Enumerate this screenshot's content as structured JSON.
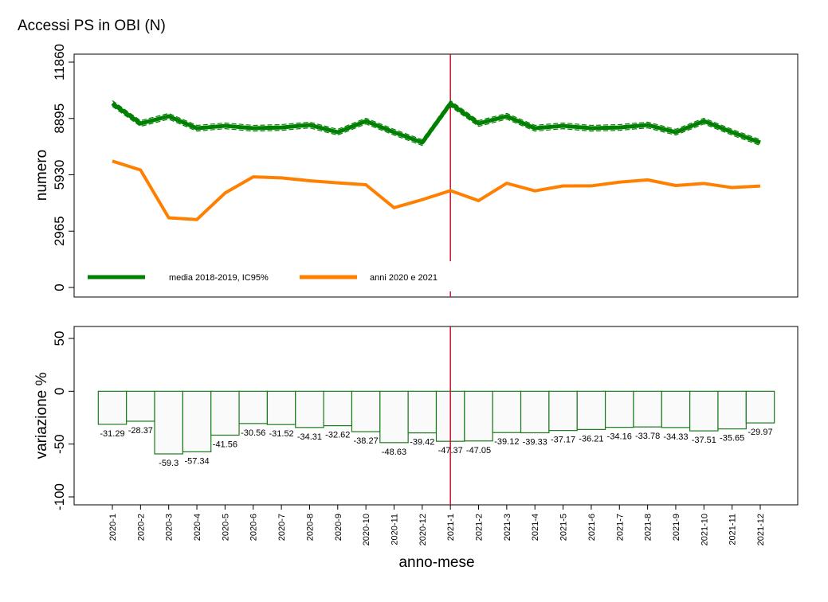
{
  "chart_data": [
    {
      "type": "line",
      "title": "Accessi PS in OBI (N)",
      "ylabel": "numero",
      "ylim": [
        0,
        11860
      ],
      "yticks": [
        "0",
        "2965",
        "5930",
        "8895",
        "11860"
      ],
      "x": [
        "2020-1",
        "2020-2",
        "2020-3",
        "2020-4",
        "2020-5",
        "2020-6",
        "2020-7",
        "2020-8",
        "2020-9",
        "2020-10",
        "2020-11",
        "2020-12",
        "2021-1",
        "2021-2",
        "2021-3",
        "2021-4",
        "2021-5",
        "2021-6",
        "2021-7",
        "2021-8",
        "2021-9",
        "2021-10",
        "2021-11",
        "2021-12"
      ],
      "series": [
        {
          "name": "media 2018-2019, IC95%",
          "color": "#008000",
          "values": [
            9680,
            8630,
            9010,
            8380,
            8505,
            8380,
            8420,
            8550,
            8170,
            8757,
            8170,
            7626,
            9680,
            8630,
            9010,
            8380,
            8505,
            8380,
            8420,
            8550,
            8170,
            8757,
            8170,
            7626
          ],
          "ci_halfwidth": 150
        },
        {
          "name": "anni 2020 e 2021",
          "color": "#ff8000",
          "values": [
            6651,
            6182,
            3667,
            3575,
            4970,
            5819,
            5766,
            5617,
            5505,
            5406,
            4197,
            4620,
            5095,
            4570,
            5485,
            5084,
            5344,
            5346,
            5544,
            5662,
            5365,
            5472,
            5257,
            5340
          ]
        }
      ],
      "vline_at": "2021-1",
      "vline_color": "#c8102e",
      "legend": "bottom-left"
    },
    {
      "type": "bar",
      "ylabel": "variazione %",
      "xlabel": "anno-mese",
      "ylim": [
        -100,
        50
      ],
      "yticks": [
        "-100",
        "-50",
        "0",
        "50"
      ],
      "categories": [
        "2020-1",
        "2020-2",
        "2020-3",
        "2020-4",
        "2020-5",
        "2020-6",
        "2020-7",
        "2020-8",
        "2020-9",
        "2020-10",
        "2020-11",
        "2020-12",
        "2021-1",
        "2021-2",
        "2021-3",
        "2021-4",
        "2021-5",
        "2021-6",
        "2021-7",
        "2021-8",
        "2021-9",
        "2021-10",
        "2021-11",
        "2021-12"
      ],
      "values": [
        -31.29,
        -28.37,
        -59.3,
        -57.34,
        -41.56,
        -30.56,
        -31.52,
        -34.31,
        -32.62,
        -38.27,
        -48.63,
        -39.42,
        -47.37,
        -47.05,
        -39.12,
        -39.33,
        -37.17,
        -36.21,
        -34.16,
        -33.78,
        -34.33,
        -37.51,
        -35.65,
        -29.97
      ],
      "labels": [
        "-31.29",
        "-28.37",
        "-59.3",
        "-57.34",
        "-41.56",
        "-30.56",
        "-31.52",
        "-34.31",
        "-32.62",
        "-38.27",
        "-48.63",
        "-39.42",
        "-47.37",
        "-47.05",
        "-39.12",
        "-39.33",
        "-37.17",
        "-36.21",
        "-34.16",
        "-33.78",
        "-34.33",
        "-37.51",
        "-35.65",
        "-29.97"
      ],
      "bar_edge_color": "#1a7a1a",
      "bar_fill_color": "#fafafa",
      "vline_at": "2021-1"
    }
  ]
}
